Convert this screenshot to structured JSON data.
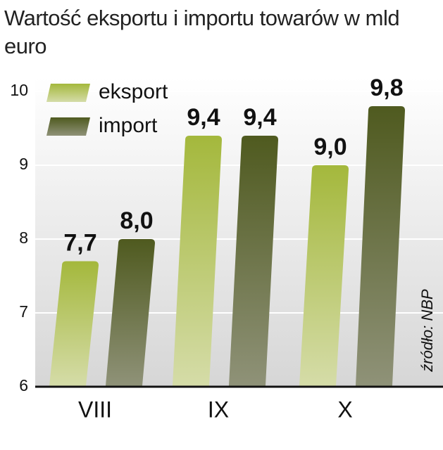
{
  "chart_data": {
    "type": "bar",
    "title": "Wartość eksportu i importu towarów w mld euro",
    "source": "źródło: NBP",
    "categories": [
      "VIII",
      "IX",
      "X"
    ],
    "series": [
      {
        "name": "eksport",
        "color": "#a4b83c",
        "values": [
          7.7,
          9.4,
          9.0
        ],
        "value_labels": [
          "7,7",
          "9,4",
          "9,0"
        ]
      },
      {
        "name": "import",
        "color": "#4f5a1f",
        "values": [
          8.0,
          9.4,
          9.8
        ],
        "value_labels": [
          "8,0",
          "9,4",
          "9,8"
        ]
      }
    ],
    "ylim": [
      6,
      10
    ],
    "yticks": [
      6,
      7,
      8,
      9,
      10
    ],
    "grid": true
  }
}
